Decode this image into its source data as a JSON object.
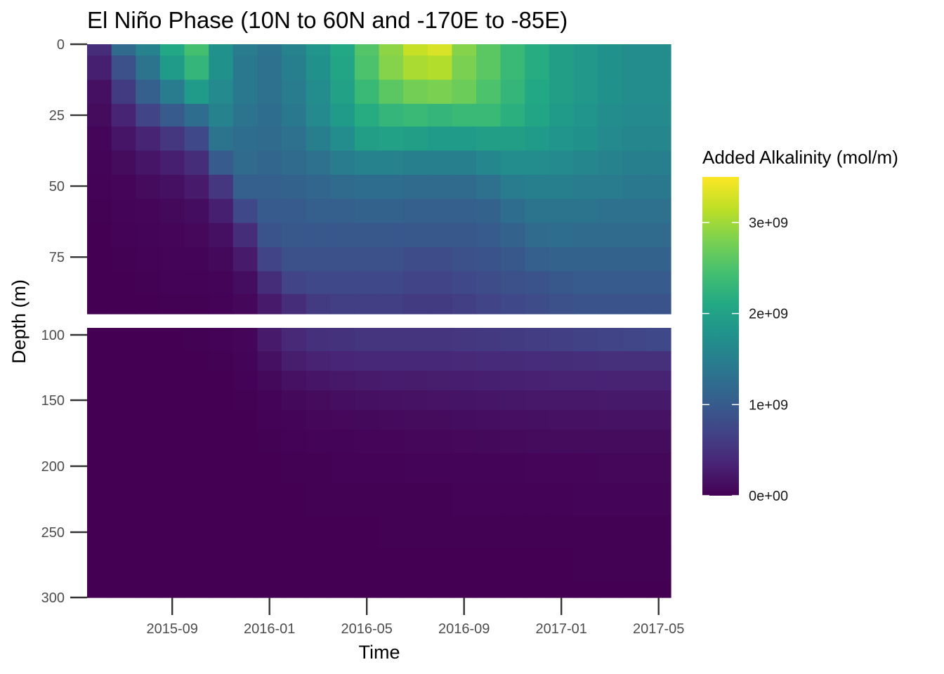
{
  "chart_data": {
    "type": "heatmap",
    "title": "El Niño Phase (10N to 60N and -170E to -85E)",
    "xlabel": "Time",
    "ylabel": "Depth (m)",
    "x_ticks": [
      "2015-09",
      "2016-01",
      "2016-05",
      "2016-09",
      "2017-01",
      "2017-05"
    ],
    "y_ticks_upper": [
      "0",
      "25",
      "50",
      "75"
    ],
    "y_ticks_lower": [
      "100",
      "150",
      "200",
      "250",
      "300"
    ],
    "y_range_upper": [
      0,
      95
    ],
    "y_range_lower": [
      95,
      300
    ],
    "legend": {
      "title": "Added Alkalinity (mol/m)",
      "labels": [
        "0e+00",
        "1e+09",
        "2e+09",
        "3e+09"
      ],
      "range": [
        0,
        3500000000
      ],
      "colormap": "viridis",
      "placement": "right"
    },
    "time_start": "2015-06",
    "time_end": "2017-05",
    "months": [
      "2015-06",
      "2015-07",
      "2015-08",
      "2015-09",
      "2015-10",
      "2015-11",
      "2015-12",
      "2016-01",
      "2016-02",
      "2016-03",
      "2016-04",
      "2016-05",
      "2016-06",
      "2016-07",
      "2016-08",
      "2016-09",
      "2016-10",
      "2016-11",
      "2016-12",
      "2017-01",
      "2017-02",
      "2017-03",
      "2017-04",
      "2017-05"
    ],
    "depth_rows_upper": [
      0,
      8,
      17,
      25,
      33,
      42,
      50,
      59,
      67,
      76,
      84,
      92
    ],
    "depth_rows_lower": [
      105,
      120,
      135,
      150,
      165,
      180,
      200,
      225,
      250,
      275,
      300
    ],
    "value_unit": "1e9 mol/m",
    "values_upper": [
      [
        0.45,
        1.2,
        1.55,
        2.1,
        2.45,
        1.75,
        1.45,
        1.35,
        1.55,
        1.8,
        2.1,
        2.55,
        2.9,
        3.2,
        3.3,
        2.85,
        2.6,
        2.35,
        2.15,
        1.95,
        1.85,
        1.75,
        1.7,
        1.7
      ],
      [
        0.3,
        0.85,
        1.35,
        1.9,
        2.3,
        1.75,
        1.4,
        1.3,
        1.5,
        1.75,
        2.05,
        2.5,
        2.85,
        3.05,
        3.1,
        2.8,
        2.6,
        2.35,
        2.15,
        1.95,
        1.85,
        1.75,
        1.7,
        1.7
      ],
      [
        0.15,
        0.6,
        1.05,
        1.45,
        1.9,
        1.65,
        1.4,
        1.3,
        1.45,
        1.7,
        2.0,
        2.35,
        2.6,
        2.75,
        2.8,
        2.7,
        2.5,
        2.3,
        2.1,
        1.95,
        1.85,
        1.75,
        1.7,
        1.7
      ],
      [
        0.1,
        0.35,
        0.7,
        1.0,
        1.25,
        1.55,
        1.35,
        1.25,
        1.4,
        1.65,
        1.9,
        2.15,
        2.3,
        2.35,
        2.3,
        2.35,
        2.35,
        2.2,
        2.05,
        1.9,
        1.8,
        1.7,
        1.65,
        1.65
      ],
      [
        0.05,
        0.2,
        0.35,
        0.55,
        0.75,
        1.35,
        1.25,
        1.2,
        1.3,
        1.5,
        1.7,
        1.95,
        2.0,
        1.95,
        1.9,
        1.9,
        1.95,
        1.95,
        1.9,
        1.8,
        1.75,
        1.65,
        1.6,
        1.6
      ],
      [
        0.03,
        0.1,
        0.2,
        0.3,
        0.45,
        1.0,
        1.2,
        1.15,
        1.2,
        1.3,
        1.45,
        1.55,
        1.55,
        1.5,
        1.5,
        1.5,
        1.6,
        1.7,
        1.7,
        1.65,
        1.6,
        1.55,
        1.5,
        1.5
      ],
      [
        0.02,
        0.05,
        0.1,
        0.15,
        0.25,
        0.55,
        1.05,
        1.05,
        1.1,
        1.15,
        1.2,
        1.25,
        1.25,
        1.2,
        1.2,
        1.2,
        1.3,
        1.45,
        1.5,
        1.5,
        1.45,
        1.45,
        1.4,
        1.4
      ],
      [
        0.01,
        0.03,
        0.05,
        0.08,
        0.12,
        0.3,
        0.75,
        1.0,
        1.0,
        1.05,
        1.05,
        1.1,
        1.1,
        1.05,
        1.05,
        1.05,
        1.1,
        1.25,
        1.35,
        1.35,
        1.35,
        1.3,
        1.3,
        1.3
      ],
      [
        0.0,
        0.02,
        0.03,
        0.05,
        0.07,
        0.15,
        0.45,
        0.9,
        0.95,
        0.95,
        0.95,
        0.95,
        0.95,
        0.95,
        0.95,
        0.95,
        1.0,
        1.1,
        1.2,
        1.25,
        1.2,
        1.2,
        1.2,
        1.2
      ],
      [
        0.0,
        0.01,
        0.02,
        0.03,
        0.04,
        0.08,
        0.25,
        0.7,
        0.85,
        0.85,
        0.85,
        0.85,
        0.85,
        0.8,
        0.8,
        0.85,
        0.9,
        0.95,
        1.05,
        1.1,
        1.1,
        1.1,
        1.1,
        1.1
      ],
      [
        0.0,
        0.0,
        0.01,
        0.02,
        0.02,
        0.04,
        0.12,
        0.45,
        0.7,
        0.75,
        0.75,
        0.75,
        0.75,
        0.7,
        0.7,
        0.75,
        0.8,
        0.85,
        0.9,
        0.95,
        1.0,
        1.0,
        1.0,
        1.0
      ],
      [
        0.0,
        0.0,
        0.0,
        0.01,
        0.01,
        0.02,
        0.06,
        0.25,
        0.45,
        0.6,
        0.65,
        0.65,
        0.65,
        0.6,
        0.6,
        0.65,
        0.7,
        0.75,
        0.8,
        0.85,
        0.9,
        0.9,
        0.9,
        0.9
      ]
    ],
    "values_lower": [
      [
        0.0,
        0.0,
        0.0,
        0.0,
        0.01,
        0.02,
        0.05,
        0.25,
        0.4,
        0.48,
        0.5,
        0.52,
        0.52,
        0.52,
        0.52,
        0.55,
        0.58,
        0.6,
        0.62,
        0.65,
        0.68,
        0.7,
        0.72,
        0.75
      ],
      [
        0.0,
        0.0,
        0.0,
        0.0,
        0.0,
        0.01,
        0.03,
        0.15,
        0.28,
        0.34,
        0.36,
        0.38,
        0.38,
        0.38,
        0.38,
        0.4,
        0.42,
        0.43,
        0.44,
        0.45,
        0.46,
        0.47,
        0.47,
        0.47
      ],
      [
        0.0,
        0.0,
        0.0,
        0.0,
        0.0,
        0.0,
        0.02,
        0.08,
        0.16,
        0.2,
        0.23,
        0.25,
        0.26,
        0.27,
        0.28,
        0.29,
        0.3,
        0.31,
        0.32,
        0.33,
        0.33,
        0.34,
        0.34,
        0.34
      ],
      [
        0.0,
        0.0,
        0.0,
        0.0,
        0.0,
        0.0,
        0.01,
        0.04,
        0.08,
        0.11,
        0.13,
        0.15,
        0.16,
        0.17,
        0.18,
        0.19,
        0.2,
        0.21,
        0.22,
        0.23,
        0.23,
        0.24,
        0.24,
        0.24
      ],
      [
        0.0,
        0.0,
        0.0,
        0.0,
        0.0,
        0.0,
        0.0,
        0.02,
        0.04,
        0.06,
        0.07,
        0.08,
        0.09,
        0.1,
        0.11,
        0.12,
        0.13,
        0.14,
        0.15,
        0.16,
        0.16,
        0.17,
        0.17,
        0.17
      ],
      [
        0.0,
        0.0,
        0.0,
        0.0,
        0.0,
        0.0,
        0.0,
        0.01,
        0.02,
        0.03,
        0.04,
        0.05,
        0.05,
        0.06,
        0.06,
        0.07,
        0.08,
        0.09,
        0.1,
        0.1,
        0.11,
        0.11,
        0.11,
        0.11
      ],
      [
        0.0,
        0.0,
        0.0,
        0.0,
        0.0,
        0.0,
        0.0,
        0.0,
        0.01,
        0.01,
        0.02,
        0.02,
        0.02,
        0.03,
        0.03,
        0.03,
        0.04,
        0.04,
        0.05,
        0.05,
        0.05,
        0.06,
        0.06,
        0.06
      ],
      [
        0.0,
        0.0,
        0.0,
        0.0,
        0.0,
        0.0,
        0.0,
        0.0,
        0.0,
        0.01,
        0.01,
        0.01,
        0.01,
        0.01,
        0.01,
        0.02,
        0.02,
        0.02,
        0.02,
        0.02,
        0.03,
        0.03,
        0.03,
        0.03
      ],
      [
        0.0,
        0.0,
        0.0,
        0.0,
        0.0,
        0.0,
        0.0,
        0.0,
        0.0,
        0.0,
        0.0,
        0.0,
        0.01,
        0.01,
        0.01,
        0.01,
        0.01,
        0.01,
        0.01,
        0.01,
        0.01,
        0.01,
        0.01,
        0.01
      ],
      [
        0.0,
        0.0,
        0.0,
        0.0,
        0.0,
        0.0,
        0.0,
        0.0,
        0.0,
        0.0,
        0.0,
        0.0,
        0.0,
        0.0,
        0.0,
        0.0,
        0.0,
        0.0,
        0.0,
        0.0,
        0.01,
        0.01,
        0.01,
        0.01
      ],
      [
        0.0,
        0.0,
        0.0,
        0.0,
        0.0,
        0.0,
        0.0,
        0.0,
        0.0,
        0.0,
        0.0,
        0.0,
        0.0,
        0.0,
        0.0,
        0.0,
        0.0,
        0.0,
        0.0,
        0.0,
        0.0,
        0.0,
        0.0,
        0.0
      ]
    ]
  }
}
